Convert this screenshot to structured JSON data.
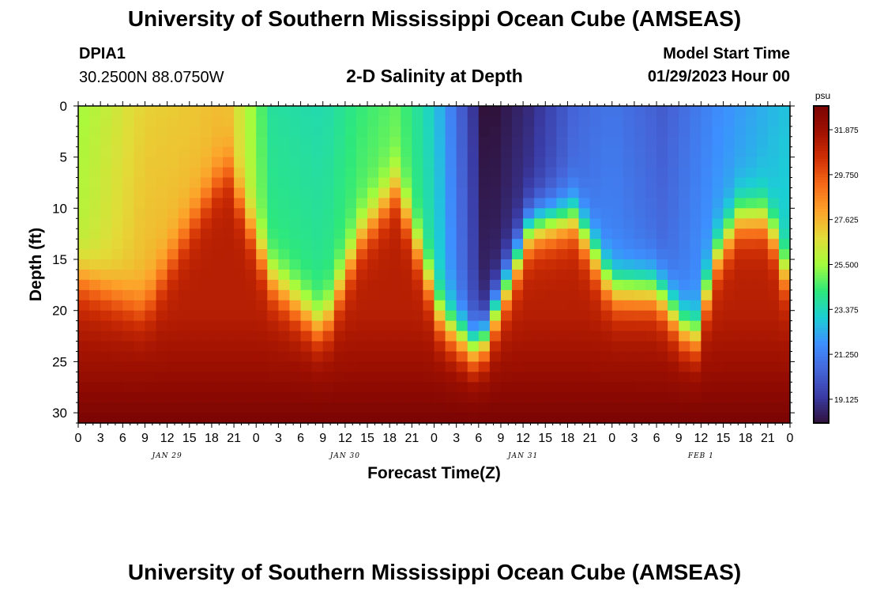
{
  "header": {
    "title": "University of Southern Mississippi Ocean Cube (AMSEAS)",
    "station": "DPIA1",
    "coords": "30.2500N  88.0750W",
    "subtitle": "2-D Salinity at Depth",
    "start_label": "Model Start Time",
    "start_value": "01/29/2023 Hour 00"
  },
  "footer": {
    "title": "University of Southern Mississippi Ocean Cube (AMSEAS)"
  },
  "colors": {
    "background": "#ffffff",
    "axis": "#000000",
    "colormap": [
      "#30123b",
      "#3a3ba4",
      "#4566d9",
      "#3d8fff",
      "#1bcfd4",
      "#2ee87a",
      "#a4fc3c",
      "#e2dc38",
      "#fca42b",
      "#f66b18",
      "#d23105",
      "#a01101",
      "#7a0403"
    ]
  },
  "chart_data": {
    "type": "heatmap",
    "title": "2-D Salinity at Depth",
    "xlabel": "Forecast Time(Z)",
    "ylabel": "Depth (ft)",
    "x_unit": "hours since 01/29/2023 00Z",
    "xlim": [
      0,
      96
    ],
    "ylim": [
      31,
      0
    ],
    "x_tick_labels": [
      "0",
      "3",
      "6",
      "9",
      "12",
      "15",
      "18",
      "21",
      "0",
      "3",
      "6",
      "9",
      "12",
      "15",
      "18",
      "21",
      "0",
      "3",
      "6",
      "9",
      "12",
      "15",
      "18",
      "21",
      "0",
      "3",
      "6",
      "9",
      "12",
      "15",
      "18",
      "21",
      "0"
    ],
    "y_ticks": [
      0,
      5,
      10,
      15,
      20,
      25,
      30
    ],
    "date_labels": [
      {
        "hour": 12,
        "label": "JAN 29"
      },
      {
        "hour": 36,
        "label": "JAN 30"
      },
      {
        "hour": 60,
        "label": "JAN 31"
      },
      {
        "hour": 84,
        "label": "FEB 1"
      }
    ],
    "colorbar": {
      "unit": "psu",
      "min": 18,
      "max": 33,
      "ticks": [
        31.875,
        29.75,
        27.625,
        25.5,
        23.375,
        21.25,
        19.125
      ],
      "tick_labels": [
        "31.875",
        "29.750",
        "27.625",
        "25.500",
        "23.375",
        "21.250",
        "19.125"
      ]
    },
    "halocline_depth_ft": {
      "hours": [
        0,
        9,
        15,
        20,
        26,
        33,
        38,
        43,
        49,
        54,
        61,
        67,
        72,
        78,
        83,
        86,
        89,
        93,
        96
      ],
      "values": [
        17,
        20,
        12,
        6,
        17,
        22,
        13,
        8,
        21,
        24,
        12,
        11,
        18,
        18,
        23,
        15,
        11,
        11,
        18
      ]
    },
    "surface_salinity_psu": {
      "hours": [
        0,
        9,
        15,
        20,
        26,
        33,
        38,
        43,
        48,
        55,
        61,
        67,
        72,
        79,
        86,
        96
      ],
      "values": [
        25.5,
        27.0,
        27.2,
        27.5,
        23.8,
        23.5,
        24.3,
        24.8,
        23.0,
        17.8,
        18.8,
        20.5,
        21.0,
        20.2,
        21.6,
        22.8
      ]
    },
    "bottom_salinity_psu": {
      "depths_ft": [
        20,
        25,
        31
      ],
      "values": [
        31.2,
        31.8,
        33.0
      ]
    }
  }
}
